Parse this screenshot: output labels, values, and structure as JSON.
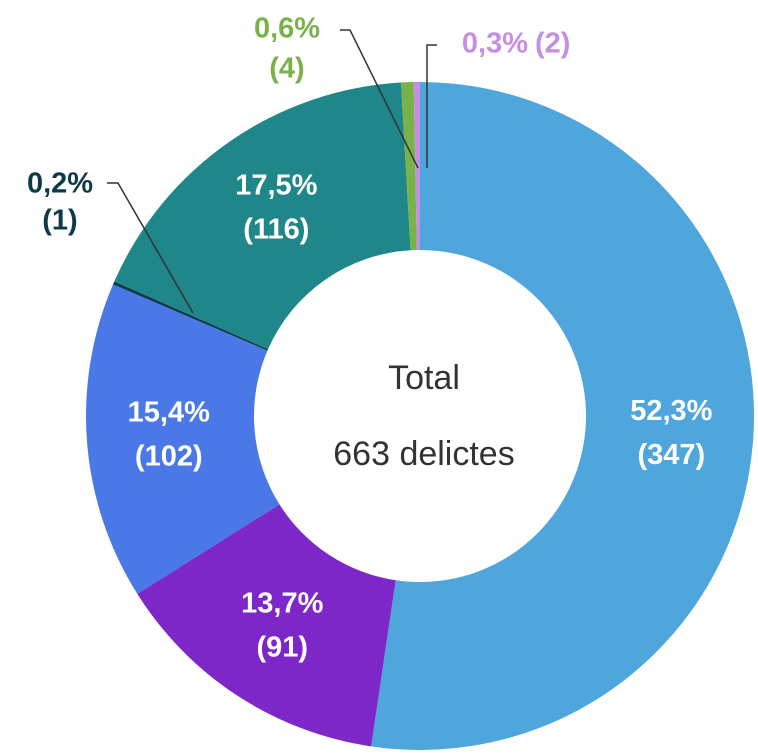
{
  "chart_data": {
    "type": "donut",
    "center_title": "Total",
    "center_text": "663 delictes",
    "values": [
      347,
      91,
      102,
      1,
      116,
      4,
      2
    ],
    "value_labels": [
      "(347)",
      "(91)",
      "(102)",
      "(1)",
      "(116)",
      "(4)",
      "(2)"
    ],
    "percentages": [
      52.3,
      13.7,
      15.4,
      0.2,
      17.5,
      0.6,
      0.3
    ],
    "percentage_labels": [
      "52,3%",
      "13,7%",
      "15,4%",
      "0,2%",
      "17,5%",
      "0,6%",
      "0,3%"
    ],
    "colors": [
      "#4fa6dc",
      "#7e27c9",
      "#4a78e6",
      "#0d3a4a",
      "#1f868a",
      "#7ab24a",
      "#c48ee6"
    ]
  }
}
